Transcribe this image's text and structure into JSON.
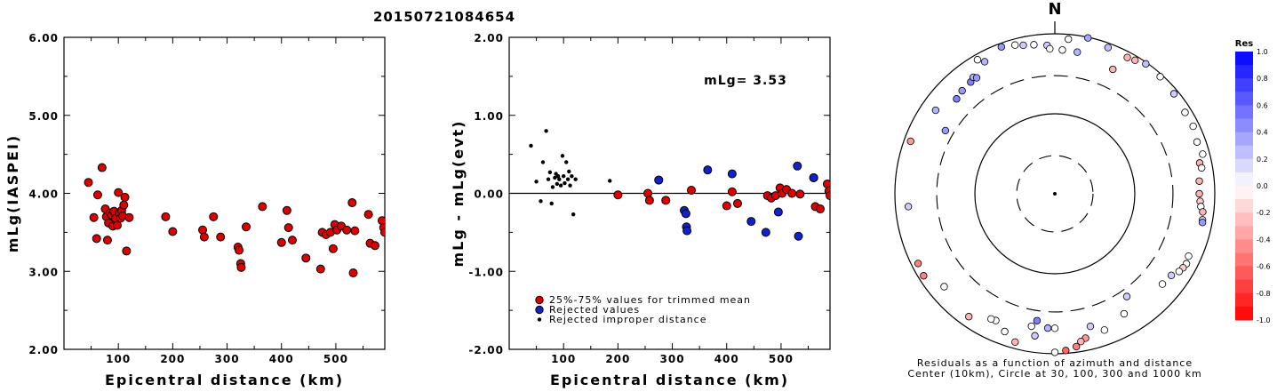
{
  "title": "20150721084654",
  "chart_data": [
    {
      "type": "scatter",
      "xlabel": "Epicentral distance (km)",
      "ylabel": "mLg(IASPEI)",
      "xlim": [
        0,
        590
      ],
      "ylim": [
        2.0,
        6.0
      ],
      "xticks": [
        100,
        200,
        300,
        400,
        500
      ],
      "xtick_labels": [
        "100",
        "200",
        "300",
        "400",
        "500"
      ],
      "yticks": [
        2.0,
        3.0,
        4.0,
        5.0,
        6.0
      ],
      "ytick_labels": [
        "2.00",
        "3.00",
        "4.00",
        "5.00",
        "6.00"
      ],
      "marker_color": "#dd0000",
      "points": [
        [
          45,
          4.14
        ],
        [
          55,
          3.69
        ],
        [
          60,
          3.42
        ],
        [
          62,
          3.98
        ],
        [
          70,
          4.33
        ],
        [
          76,
          3.8
        ],
        [
          78,
          3.7
        ],
        [
          80,
          3.4
        ],
        [
          82,
          3.62
        ],
        [
          85,
          3.75
        ],
        [
          88,
          3.72
        ],
        [
          90,
          3.58
        ],
        [
          92,
          3.77
        ],
        [
          95,
          3.68
        ],
        [
          98,
          3.59
        ],
        [
          100,
          4.01
        ],
        [
          102,
          3.75
        ],
        [
          104,
          3.68
        ],
        [
          106,
          3.78
        ],
        [
          108,
          3.71
        ],
        [
          110,
          3.85
        ],
        [
          112,
          3.95
        ],
        [
          115,
          3.26
        ],
        [
          120,
          3.69
        ],
        [
          187,
          3.7
        ],
        [
          200,
          3.51
        ],
        [
          255,
          3.53
        ],
        [
          258,
          3.44
        ],
        [
          275,
          3.7
        ],
        [
          288,
          3.44
        ],
        [
          320,
          3.31
        ],
        [
          322,
          3.27
        ],
        [
          325,
          3.1
        ],
        [
          326,
          3.05
        ],
        [
          335,
          3.57
        ],
        [
          365,
          3.83
        ],
        [
          400,
          3.37
        ],
        [
          410,
          3.78
        ],
        [
          413,
          3.56
        ],
        [
          420,
          3.4
        ],
        [
          445,
          3.17
        ],
        [
          472,
          3.03
        ],
        [
          475,
          3.5
        ],
        [
          482,
          3.47
        ],
        [
          490,
          3.5
        ],
        [
          495,
          3.29
        ],
        [
          498,
          3.6
        ],
        [
          502,
          3.53
        ],
        [
          510,
          3.58
        ],
        [
          520,
          3.53
        ],
        [
          530,
          3.88
        ],
        [
          532,
          2.98
        ],
        [
          535,
          3.52
        ],
        [
          560,
          3.73
        ],
        [
          563,
          3.36
        ],
        [
          572,
          3.33
        ],
        [
          585,
          3.65
        ],
        [
          588,
          3.56
        ],
        [
          590,
          3.5
        ]
      ]
    },
    {
      "type": "scatter",
      "xlabel": "Epicentral distance (km)",
      "ylabel": "mLg - mLg(evt)",
      "xlim": [
        0,
        590
      ],
      "ylim": [
        -2.0,
        2.0
      ],
      "xticks": [
        100,
        200,
        300,
        400,
        500
      ],
      "xtick_labels": [
        "100",
        "200",
        "300",
        "400",
        "500"
      ],
      "yticks": [
        -2.0,
        -1.0,
        0.0,
        1.0,
        2.0
      ],
      "ytick_labels": [
        "-2.00",
        "-1.00",
        "0.00",
        "1.00",
        "2.00"
      ],
      "annotation": "mLg= 3.53",
      "reference_line": 0.0,
      "legend": [
        {
          "label": "25%-75% values for trimmed mean",
          "color": "#dd0000",
          "marker": "circle"
        },
        {
          "label": "Rejected values",
          "color": "#1122cc",
          "marker": "circle"
        },
        {
          "label": "Rejected improper distance",
          "color": "#000000",
          "marker": "dot"
        }
      ],
      "series": [
        {
          "color": "#dd0000",
          "points": [
            [
              200,
              -0.02
            ],
            [
              255,
              0.0
            ],
            [
              258,
              -0.09
            ],
            [
              275,
              0.17
            ],
            [
              288,
              -0.09
            ],
            [
              335,
              0.04
            ],
            [
              400,
              -0.16
            ],
            [
              410,
              0.02
            ],
            [
              420,
              -0.13
            ],
            [
              475,
              -0.03
            ],
            [
              482,
              -0.06
            ],
            [
              490,
              -0.03
            ],
            [
              498,
              0.07
            ],
            [
              502,
              0.0
            ],
            [
              510,
              0.05
            ],
            [
              520,
              0.0
            ],
            [
              535,
              -0.01
            ],
            [
              560,
              0.2
            ],
            [
              563,
              -0.17
            ],
            [
              572,
              -0.2
            ],
            [
              585,
              0.12
            ],
            [
              588,
              0.03
            ],
            [
              590,
              -0.03
            ]
          ]
        },
        {
          "color": "#1122cc",
          "points": [
            [
              275,
              0.17
            ],
            [
              322,
              -0.22
            ],
            [
              325,
              -0.26
            ],
            [
              326,
              -0.43
            ],
            [
              327,
              -0.48
            ],
            [
              365,
              0.3
            ],
            [
              410,
              0.25
            ],
            [
              445,
              -0.36
            ],
            [
              472,
              -0.5
            ],
            [
              495,
              -0.24
            ],
            [
              530,
              0.35
            ],
            [
              532,
              -0.55
            ],
            [
              560,
              0.2
            ]
          ]
        },
        {
          "color": "#000000",
          "points": [
            [
              40,
              0.61
            ],
            [
              50,
              0.15
            ],
            [
              58,
              -0.1
            ],
            [
              62,
              0.4
            ],
            [
              68,
              0.8
            ],
            [
              72,
              0.18
            ],
            [
              75,
              0.27
            ],
            [
              78,
              -0.13
            ],
            [
              80,
              0.08
            ],
            [
              84,
              0.2
            ],
            [
              86,
              0.25
            ],
            [
              88,
              0.12
            ],
            [
              90,
              0.22
            ],
            [
              92,
              0.18
            ],
            [
              95,
              0.1
            ],
            [
              98,
              0.48
            ],
            [
              100,
              0.22
            ],
            [
              102,
              0.13
            ],
            [
              105,
              0.4
            ],
            [
              108,
              0.18
            ],
            [
              110,
              0.28
            ],
            [
              112,
              0.1
            ],
            [
              115,
              0.22
            ],
            [
              118,
              -0.27
            ],
            [
              122,
              0.18
            ],
            [
              185,
              0.16
            ]
          ]
        }
      ]
    },
    {
      "type": "scatter",
      "subtype": "polar-residuals",
      "north_label": "N",
      "caption_line1": "Residuals as a function of azimuth and distance",
      "caption_line2": "Center (10km), Circle at 30, 100, 300 and 1000 km",
      "colorbar_title": "Res",
      "colorbar_ticks": [
        "1.0",
        "0.8",
        "0.6",
        "0.4",
        "0.2",
        "0.0",
        "-0.2",
        "-0.4",
        "-0.6",
        "-0.8",
        "-1.0"
      ],
      "colorbar_range": [
        -1.0,
        1.0
      ],
      "ring_distances_km": [
        30,
        100,
        300,
        1000
      ],
      "points_az_dist_res": [
        [
          12,
          980,
          0.35
        ],
        [
          5,
          870,
          0.0
        ],
        [
          20,
          880,
          0.25
        ],
        [
          28,
          850,
          -0.3
        ],
        [
          31,
          885,
          -0.3
        ],
        [
          35,
          960,
          0.25
        ],
        [
          42,
          930,
          0.0
        ],
        [
          50,
          880,
          0.2
        ],
        [
          58,
          830,
          0.0
        ],
        [
          64,
          840,
          0.0
        ],
        [
          70,
          780,
          0.0
        ],
        [
          75,
          820,
          0.0
        ],
        [
          78,
          710,
          -0.3
        ],
        [
          80,
          730,
          0.0
        ],
        [
          85,
          650,
          -0.3
        ],
        [
          90,
          640,
          -0.3
        ],
        [
          93,
          660,
          -0.2
        ],
        [
          95,
          680,
          0.0
        ],
        [
          97,
          730,
          -0.3
        ],
        [
          100,
          750,
          0.2
        ],
        [
          101,
          760,
          0.4
        ],
        [
          115,
          700,
          0.0
        ],
        [
          118,
          730,
          0.0
        ],
        [
          120,
          710,
          -0.2
        ],
        [
          122,
          680,
          0.0
        ],
        [
          125,
          600,
          0.2
        ],
        [
          130,
          570,
          0.0
        ],
        [
          145,
          370,
          0.2
        ],
        [
          150,
          540,
          0.0
        ],
        [
          160,
          650,
          0.0
        ],
        [
          165,
          520,
          0.2
        ],
        [
          168,
          700,
          -0.4
        ],
        [
          170,
          750,
          -0.3
        ],
        [
          172,
          850,
          -0.5
        ],
        [
          176,
          920,
          -0.6
        ],
        [
          180,
          960,
          0.0
        ],
        [
          180,
          480,
          0.0
        ],
        [
          183,
          480,
          0.3
        ],
        [
          188,
          400,
          0.5
        ],
        [
          188,
          620,
          0.2
        ],
        [
          190,
          480,
          0.0
        ],
        [
          195,
          830,
          -0.3
        ],
        [
          200,
          680,
          0.0
        ],
        [
          205,
          560,
          0.0
        ],
        [
          207,
          570,
          0.0
        ],
        [
          215,
          750,
          -0.3
        ],
        [
          230,
          640,
          0.0
        ],
        [
          238,
          860,
          -0.5
        ],
        [
          243,
          830,
          -0.5
        ],
        [
          265,
          690,
          0.2
        ],
        [
          290,
          830,
          -0.4
        ],
        [
          300,
          380,
          0.4
        ],
        [
          305,
          660,
          0.3
        ],
        [
          314,
          510,
          0.5
        ],
        [
          318,
          540,
          0.4
        ],
        [
          323,
          560,
          0.5
        ],
        [
          325,
          600,
          0.3
        ],
        [
          326,
          560,
          0.4
        ],
        [
          330,
          860,
          0.0
        ],
        [
          332,
          740,
          0.3
        ],
        [
          340,
          900,
          0.4
        ],
        [
          345,
          840,
          0.0
        ],
        [
          348,
          790,
          0.2
        ],
        [
          352,
          760,
          0.0
        ],
        [
          357,
          720,
          0.2
        ],
        [
          358,
          650,
          0.0
        ],
        [
          3,
          630,
          0.0
        ],
        [
          9,
          620,
          0.3
        ],
        [
          25,
          520,
          -0.3
        ]
      ]
    }
  ]
}
